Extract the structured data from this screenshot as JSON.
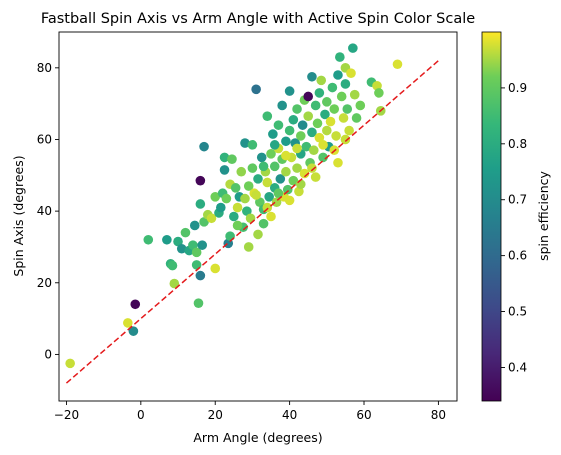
{
  "chart_data": {
    "type": "scatter",
    "title": "Fastball Spin Axis vs Arm Angle with Active Spin Color Scale",
    "xlabel": "Arm Angle (degrees)",
    "ylabel": "Spin Axis (degrees)",
    "xlim": [
      -22,
      85
    ],
    "ylim": [
      -13,
      90
    ],
    "xticks": [
      -20,
      0,
      20,
      40,
      60,
      80
    ],
    "yticks": [
      0,
      20,
      40,
      60,
      80
    ],
    "grid": false,
    "colorbar": {
      "label": "spin efficiency",
      "colormap": "viridis",
      "range": [
        0.34,
        1.0
      ],
      "ticks": [
        0.4,
        0.5,
        0.6,
        0.7,
        0.8,
        0.9
      ]
    },
    "reference_line": {
      "style": "dashed",
      "color": "#e41a1c",
      "x": [
        -20,
        80
      ],
      "y": [
        -8,
        82
      ]
    },
    "points": [
      [
        -19,
        -2.5,
        0.97
      ],
      [
        -3.5,
        8.8,
        0.98
      ],
      [
        -2,
        6.5,
        0.7
      ],
      [
        -1.5,
        14,
        0.35
      ],
      [
        2,
        32,
        0.85
      ],
      [
        7,
        32,
        0.75
      ],
      [
        8,
        25.3,
        0.82
      ],
      [
        8.5,
        24.8,
        0.85
      ],
      [
        9,
        19.8,
        0.95
      ],
      [
        10,
        31.5,
        0.8
      ],
      [
        11,
        29.5,
        0.72
      ],
      [
        12,
        34,
        0.88
      ],
      [
        13,
        29,
        0.78
      ],
      [
        14,
        30.5,
        0.85
      ],
      [
        14.5,
        36,
        0.72
      ],
      [
        15,
        25,
        0.85
      ],
      [
        15,
        28.5,
        0.9
      ],
      [
        15.5,
        14.3,
        0.88
      ],
      [
        16,
        48.5,
        0.35
      ],
      [
        16,
        22,
        0.65
      ],
      [
        16.5,
        30.5,
        0.72
      ],
      [
        16,
        42,
        0.8
      ],
      [
        17,
        58,
        0.68
      ],
      [
        17,
        37,
        0.88
      ],
      [
        18,
        39,
        0.95
      ],
      [
        19,
        38,
        0.97
      ],
      [
        20,
        24,
        0.98
      ],
      [
        20,
        44,
        0.92
      ],
      [
        21,
        39.5,
        0.8
      ],
      [
        21.5,
        41,
        0.75
      ],
      [
        22,
        45,
        0.85
      ],
      [
        22.5,
        51.5,
        0.72
      ],
      [
        22.5,
        55,
        0.82
      ],
      [
        23,
        43.5,
        0.92
      ],
      [
        23.5,
        31,
        0.66
      ],
      [
        24,
        33,
        0.85
      ],
      [
        24,
        47.5,
        0.96
      ],
      [
        24.5,
        54.5,
        0.9
      ],
      [
        25,
        38.5,
        0.8
      ],
      [
        25.5,
        46.5,
        0.88
      ],
      [
        26,
        41,
        0.97
      ],
      [
        26.5,
        44,
        0.75
      ],
      [
        27,
        51,
        0.94
      ],
      [
        27.5,
        35.5,
        0.86
      ],
      [
        28,
        43.5,
        0.95
      ],
      [
        28,
        59,
        0.72
      ],
      [
        28.5,
        40,
        0.82
      ],
      [
        29,
        47,
        0.92
      ],
      [
        29.5,
        38,
        0.95
      ],
      [
        30,
        58.5,
        0.85
      ],
      [
        30,
        52,
        0.9
      ],
      [
        30.5,
        45,
        0.98
      ],
      [
        31,
        74,
        0.62
      ],
      [
        31.5,
        49,
        0.8
      ],
      [
        31.5,
        33.5,
        0.95
      ],
      [
        32,
        42.5,
        0.9
      ],
      [
        32.5,
        55,
        0.72
      ],
      [
        33,
        40.5,
        0.85
      ],
      [
        33,
        36.5,
        0.88
      ],
      [
        33.5,
        51,
        0.95
      ],
      [
        34,
        48,
        0.97
      ],
      [
        34,
        66.5,
        0.85
      ],
      [
        34.5,
        44,
        0.78
      ],
      [
        35,
        56,
        0.92
      ],
      [
        35,
        38.5,
        0.98
      ],
      [
        35.5,
        61.5,
        0.75
      ],
      [
        36,
        52.5,
        0.88
      ],
      [
        36,
        46.5,
        0.8
      ],
      [
        36.5,
        42.5,
        0.95
      ],
      [
        37,
        57.5,
        0.97
      ],
      [
        37,
        64,
        0.85
      ],
      [
        37.5,
        49,
        0.72
      ],
      [
        38,
        54.5,
        0.9
      ],
      [
        38,
        69.5,
        0.72
      ],
      [
        38.5,
        44,
        0.98
      ],
      [
        39,
        59.5,
        0.75
      ],
      [
        39,
        51,
        0.95
      ],
      [
        39.5,
        46,
        0.88
      ],
      [
        40,
        62.5,
        0.85
      ],
      [
        40,
        73.5,
        0.72
      ],
      [
        40.5,
        55,
        0.97
      ],
      [
        41,
        48.5,
        0.92
      ],
      [
        41,
        65.5,
        0.8
      ],
      [
        41.5,
        59,
        0.72
      ],
      [
        42,
        52,
        0.95
      ],
      [
        42,
        68.5,
        0.88
      ],
      [
        42.5,
        45.5,
        0.97
      ],
      [
        43,
        61,
        0.92
      ],
      [
        43,
        56,
        0.78
      ],
      [
        43.5,
        64,
        0.7
      ],
      [
        44,
        50.5,
        0.98
      ],
      [
        44,
        71,
        0.92
      ],
      [
        44.5,
        58,
        0.85
      ],
      [
        45,
        66.5,
        0.95
      ],
      [
        45,
        72,
        0.35
      ],
      [
        45.5,
        53.5,
        0.9
      ],
      [
        46,
        62,
        0.8
      ],
      [
        46,
        77.5,
        0.7
      ],
      [
        46.5,
        57,
        0.95
      ],
      [
        47,
        69.5,
        0.85
      ],
      [
        47,
        49.5,
        0.97
      ],
      [
        47.5,
        64.5,
        0.92
      ],
      [
        48,
        73,
        0.82
      ],
      [
        48,
        60.5,
        0.98
      ],
      [
        48.5,
        76.5,
        0.95
      ],
      [
        49,
        55,
        0.88
      ],
      [
        49.5,
        67,
        0.8
      ],
      [
        50,
        62.5,
        0.96
      ],
      [
        50,
        70.5,
        0.9
      ],
      [
        50.5,
        58,
        0.75
      ],
      [
        51,
        65,
        0.98
      ],
      [
        51.5,
        74.5,
        0.85
      ],
      [
        52,
        68.5,
        0.92
      ],
      [
        52.5,
        61,
        0.97
      ],
      [
        53,
        78,
        0.75
      ],
      [
        53,
        53.5,
        0.98
      ],
      [
        53.5,
        83,
        0.82
      ],
      [
        54,
        72,
        0.92
      ],
      [
        54.5,
        66,
        0.97
      ],
      [
        55,
        80,
        0.95
      ],
      [
        55,
        75.5,
        0.8
      ],
      [
        55.5,
        68.5,
        0.88
      ],
      [
        56,
        62.5,
        0.97
      ],
      [
        56.5,
        78.5,
        0.98
      ],
      [
        57,
        85.5,
        0.78
      ],
      [
        57.5,
        72.5,
        0.95
      ],
      [
        58,
        66,
        0.9
      ],
      [
        59,
        69.5,
        0.92
      ],
      [
        62,
        76,
        0.85
      ],
      [
        63.5,
        75,
        0.97
      ],
      [
        64,
        73,
        0.92
      ],
      [
        64.5,
        68,
        0.95
      ],
      [
        69,
        81,
        0.98
      ],
      [
        26,
        36,
        0.92
      ],
      [
        29,
        30,
        0.95
      ],
      [
        34,
        41,
        0.97
      ],
      [
        37,
        45,
        0.9
      ],
      [
        40,
        43,
        0.98
      ],
      [
        43,
        47.5,
        0.95
      ],
      [
        46,
        52,
        0.97
      ],
      [
        49,
        58.5,
        0.98
      ],
      [
        52,
        57,
        0.98
      ],
      [
        55,
        60,
        0.97
      ],
      [
        31,
        44.5,
        0.97
      ],
      [
        33,
        52.5,
        0.85
      ],
      [
        36,
        58.5,
        0.78
      ],
      [
        39,
        55.5,
        0.98
      ],
      [
        42,
        57.5,
        0.97
      ]
    ]
  }
}
